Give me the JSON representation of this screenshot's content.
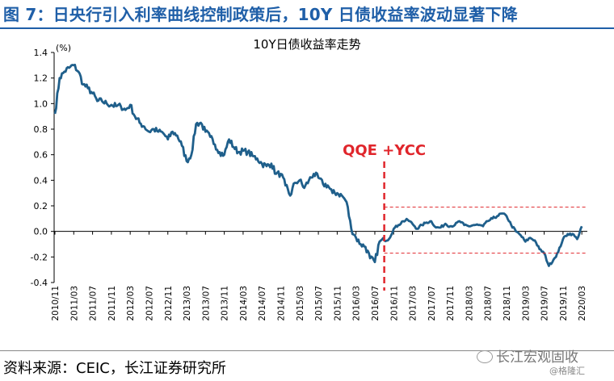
{
  "figure_title": "图 7：日央行引入利率曲线控制政策后，10Y 日债收益率波动显著下降",
  "source_text": "资料来源：CEIC，长江证券研究所",
  "watermark": "长江宏观固收",
  "watermark_sub": "@格隆汇",
  "chart_data": {
    "type": "line",
    "title": "10Y日债收益率走势",
    "unit_label": "(%)",
    "ylim": [
      -0.4,
      1.4
    ],
    "yticks": [
      -0.4,
      -0.2,
      0.0,
      0.2,
      0.4,
      0.6,
      0.8,
      1.0,
      1.2,
      1.4
    ],
    "ytick_labels": [
      "-0.4",
      "-0.2",
      "0.0",
      "0.2",
      "0.4",
      "0.6",
      "0.8",
      "1.0",
      "1.2",
      "1.4"
    ],
    "xlim": [
      "2010-11",
      "2020-04"
    ],
    "xtick_labels": [
      "2010/11",
      "2011/03",
      "2011/07",
      "2011/11",
      "2012/03",
      "2012/07",
      "2012/11",
      "2013/03",
      "2013/07",
      "2013/11",
      "2014/03",
      "2014/07",
      "2014/11",
      "2015/03",
      "2015/07",
      "2015/11",
      "2016/03",
      "2016/07",
      "2016/11",
      "2017/03",
      "2017/07",
      "2017/11",
      "2018/03",
      "2018/07",
      "2018/11",
      "2019/03",
      "2019/07",
      "2019/11",
      "2020/03"
    ],
    "grid": false,
    "colors": {
      "line": "#1f5f8b",
      "annotation": "#e0252b",
      "axis": "#000000"
    },
    "series": [
      {
        "x": [
          "2010-11",
          "2010-12",
          "2011-01",
          "2011-02",
          "2011-03",
          "2011-04",
          "2011-05",
          "2011-06",
          "2011-07",
          "2011-08",
          "2011-09",
          "2011-10",
          "2011-11",
          "2011-12",
          "2012-01",
          "2012-02",
          "2012-03",
          "2012-04",
          "2012-05",
          "2012-06",
          "2012-07",
          "2012-08",
          "2012-09",
          "2012-10",
          "2012-11",
          "2012-12",
          "2013-01",
          "2013-02",
          "2013-03",
          "2013-04",
          "2013-05",
          "2013-06",
          "2013-07",
          "2013-08",
          "2013-09",
          "2013-10",
          "2013-11",
          "2013-12",
          "2014-01",
          "2014-02",
          "2014-03",
          "2014-04",
          "2014-05",
          "2014-06",
          "2014-07",
          "2014-08",
          "2014-09",
          "2014-10",
          "2014-11",
          "2014-12",
          "2015-01",
          "2015-02",
          "2015-03",
          "2015-04",
          "2015-05",
          "2015-06",
          "2015-07",
          "2015-08",
          "2015-09",
          "2015-10",
          "2015-11",
          "2015-12",
          "2016-01",
          "2016-02",
          "2016-03",
          "2016-04",
          "2016-05",
          "2016-06",
          "2016-07",
          "2016-08",
          "2016-09",
          "2016-10",
          "2016-11",
          "2016-12",
          "2017-01",
          "2017-02",
          "2017-03",
          "2017-04",
          "2017-05",
          "2017-06",
          "2017-07",
          "2017-08",
          "2017-09",
          "2017-10",
          "2017-11",
          "2017-12",
          "2018-01",
          "2018-02",
          "2018-03",
          "2018-04",
          "2018-05",
          "2018-06",
          "2018-07",
          "2018-08",
          "2018-09",
          "2018-10",
          "2018-11",
          "2018-12",
          "2019-01",
          "2019-02",
          "2019-03",
          "2019-04",
          "2019-05",
          "2019-06",
          "2019-07",
          "2019-08",
          "2019-09",
          "2019-10",
          "2019-11",
          "2019-12",
          "2020-01",
          "2020-02",
          "2020-03"
        ],
        "values": [
          0.92,
          1.2,
          1.25,
          1.28,
          1.3,
          1.25,
          1.15,
          1.12,
          1.08,
          1.02,
          1.02,
          1.0,
          0.99,
          0.98,
          0.98,
          0.95,
          0.99,
          0.9,
          0.85,
          0.82,
          0.78,
          0.8,
          0.78,
          0.77,
          0.72,
          0.78,
          0.75,
          0.67,
          0.55,
          0.6,
          0.84,
          0.85,
          0.78,
          0.74,
          0.68,
          0.62,
          0.6,
          0.72,
          0.66,
          0.62,
          0.63,
          0.62,
          0.59,
          0.57,
          0.53,
          0.51,
          0.53,
          0.45,
          0.45,
          0.36,
          0.28,
          0.38,
          0.4,
          0.34,
          0.4,
          0.45,
          0.42,
          0.37,
          0.36,
          0.3,
          0.3,
          0.28,
          0.23,
          0.02,
          -0.05,
          -0.1,
          -0.12,
          -0.21,
          -0.24,
          -0.08,
          -0.07,
          -0.06,
          0.02,
          0.05,
          0.08,
          0.09,
          0.06,
          0.02,
          0.05,
          0.07,
          0.08,
          0.03,
          0.03,
          0.06,
          0.04,
          0.05,
          0.08,
          0.05,
          0.04,
          0.05,
          0.05,
          0.04,
          0.08,
          0.1,
          0.12,
          0.14,
          0.12,
          0.05,
          0.0,
          -0.03,
          -0.08,
          -0.05,
          -0.07,
          -0.14,
          -0.17,
          -0.27,
          -0.22,
          -0.16,
          -0.06,
          -0.02,
          -0.02,
          -0.06,
          0.04
        ]
      }
    ],
    "annotations": {
      "label": "QQE +YCC",
      "vline_x": "2016-09",
      "upper_band": 0.19,
      "lower_band": -0.17,
      "band_start": "2016-09",
      "band_end": "2020-04"
    }
  }
}
